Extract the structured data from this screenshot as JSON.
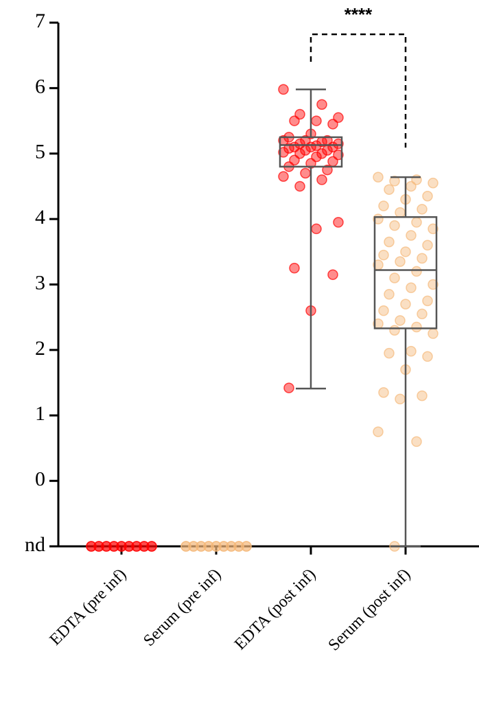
{
  "chart_data": {
    "type": "box",
    "categories": [
      "EDTA (pre inf)",
      "Serum (pre inf)",
      "EDTA (post inf)",
      "Serum (post inf)"
    ],
    "ylim": [
      -1,
      7
    ],
    "yticks": [
      {
        "value": -1,
        "label": "nd"
      },
      0,
      1,
      2,
      3,
      4,
      5,
      6,
      7
    ],
    "annotation": "****",
    "groups": [
      {
        "color": "#ff0000",
        "points": [
          -1,
          -1,
          -1,
          -1,
          -1,
          -1,
          -1,
          -1,
          -1,
          -1,
          -1,
          -1,
          -1,
          -1,
          -1,
          -1,
          -1,
          -1
        ]
      },
      {
        "color": "#f5b97a",
        "points": [
          -1,
          -1,
          -1,
          -1,
          -1,
          -1,
          -1,
          -1,
          -1,
          -1,
          -1,
          -1,
          -1,
          -1,
          -1,
          -1,
          -1,
          -1
        ]
      },
      {
        "color": "#ff0000",
        "whisker_low": 1.41,
        "q1": 4.8,
        "median": 5.13,
        "q3": 5.25,
        "whisker_high": 5.98,
        "points": [
          5.98,
          5.75,
          5.6,
          5.55,
          5.5,
          5.5,
          5.45,
          5.3,
          5.25,
          5.2,
          5.2,
          5.2,
          5.18,
          5.15,
          5.15,
          5.12,
          5.1,
          5.1,
          5.1,
          5.08,
          5.05,
          5.05,
          5.02,
          5.0,
          5.0,
          4.98,
          4.95,
          4.9,
          4.88,
          4.85,
          4.8,
          4.75,
          4.7,
          4.65,
          4.6,
          4.5,
          3.95,
          3.85,
          3.25,
          3.15,
          2.6,
          1.42
        ]
      },
      {
        "color": "#f5b97a",
        "whisker_low": -1,
        "q1": 2.33,
        "median": 3.22,
        "q3": 4.03,
        "whisker_high": 4.64,
        "points": [
          4.64,
          4.6,
          4.58,
          4.55,
          4.5,
          4.45,
          4.35,
          4.3,
          4.2,
          4.15,
          4.1,
          4.0,
          3.95,
          3.9,
          3.85,
          3.75,
          3.65,
          3.6,
          3.5,
          3.45,
          3.4,
          3.35,
          3.3,
          3.2,
          3.1,
          3.0,
          2.95,
          2.85,
          2.75,
          2.7,
          2.6,
          2.55,
          2.45,
          2.4,
          2.35,
          2.3,
          2.25,
          1.98,
          1.95,
          1.9,
          1.7,
          1.35,
          1.3,
          1.25,
          0.75,
          0.6,
          -1
        ]
      }
    ]
  }
}
